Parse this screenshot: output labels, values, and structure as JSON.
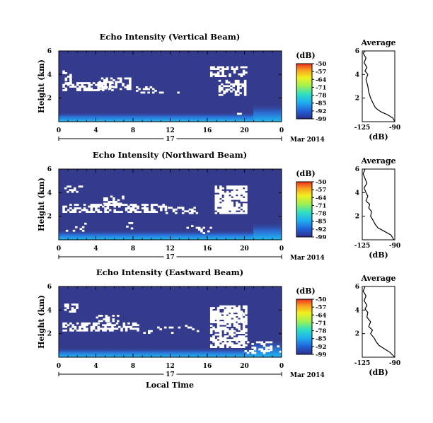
{
  "chart_data": {
    "type": "heatmap",
    "colorbar": {
      "unit_label": "(dB)",
      "ticks": [
        "-50",
        "-57",
        "-64",
        "-71",
        "-78",
        "-85",
        "-92",
        "-99"
      ],
      "range": [
        -99,
        -50
      ],
      "colors": [
        "#2b2f8a",
        "#2060d8",
        "#20b0f0",
        "#30e0c0",
        "#a0f050",
        "#f0f020",
        "#f8a020",
        "#f03020"
      ]
    },
    "average_title": "Average",
    "average_xlabel": "(dB)",
    "average_xticks": [
      "-125",
      "-90"
    ],
    "average_xlim": [
      -125,
      -90
    ],
    "average_yticks": [
      "6",
      "4",
      "2"
    ],
    "average_ylim": [
      0,
      6
    ],
    "time_label": "Local Time",
    "day_label": "17",
    "date_label": "Mar 2014",
    "panels": [
      {
        "title": "Echo Intensity (Vertical Beam)",
        "ylabel": "Height (km)",
        "yticks": [
          "6",
          "4",
          "2"
        ],
        "xticks": [
          "0",
          "4",
          "8",
          "12",
          "16",
          "20",
          "0"
        ],
        "ylim": [
          0,
          6
        ],
        "xlim": [
          0,
          24
        ],
        "profile": {
          "height": [
            0.0,
            0.3,
            0.6,
            0.8,
            1.0,
            1.2,
            1.5,
            2.0,
            2.5,
            3.0,
            3.3,
            3.6,
            4.0,
            4.3,
            4.6,
            5.0,
            5.4,
            5.8,
            6.0
          ],
          "db": [
            -90,
            -92,
            -98,
            -104,
            -108,
            -111,
            -113,
            -116,
            -118,
            -119,
            -120,
            -121,
            -119,
            -122,
            -120,
            -123,
            -121,
            -124,
            -122
          ]
        }
      },
      {
        "title": "Echo Intensity (Northward Beam)",
        "ylabel": "Height (km)",
        "yticks": [
          "6",
          "4",
          "2"
        ],
        "xticks": [
          "0",
          "4",
          "8",
          "12",
          "16",
          "20",
          "0"
        ],
        "ylim": [
          0,
          6
        ],
        "xlim": [
          0,
          24
        ],
        "profile": {
          "height": [
            0.0,
            0.4,
            0.8,
            1.0,
            1.3,
            1.6,
            2.0,
            2.4,
            2.7,
            3.0,
            3.3,
            3.7,
            4.0,
            4.4,
            4.8,
            5.2,
            5.6,
            6.0
          ],
          "db": [
            -91,
            -94,
            -103,
            -108,
            -111,
            -113,
            -116,
            -115,
            -118,
            -117,
            -121,
            -119,
            -121,
            -123,
            -120,
            -122,
            -124,
            -122
          ]
        }
      },
      {
        "title": "Echo Intensity (Eastward Beam)",
        "ylabel": "Height (km)",
        "yticks": [
          "6",
          "4",
          "2"
        ],
        "xticks": [
          "0",
          "4",
          "8",
          "12",
          "16",
          "20",
          "0"
        ],
        "ylim": [
          0,
          6
        ],
        "xlim": [
          0,
          24
        ],
        "profile": {
          "height": [
            0.0,
            0.4,
            0.7,
            1.0,
            1.3,
            1.6,
            2.0,
            2.3,
            2.6,
            3.0,
            3.4,
            3.8,
            4.1,
            4.4,
            4.8,
            5.2,
            5.6,
            6.0
          ],
          "db": [
            -90,
            -95,
            -101,
            -107,
            -110,
            -112,
            -116,
            -114,
            -118,
            -116,
            -120,
            -119,
            -122,
            -120,
            -123,
            -121,
            -124,
            -122
          ]
        }
      }
    ]
  }
}
